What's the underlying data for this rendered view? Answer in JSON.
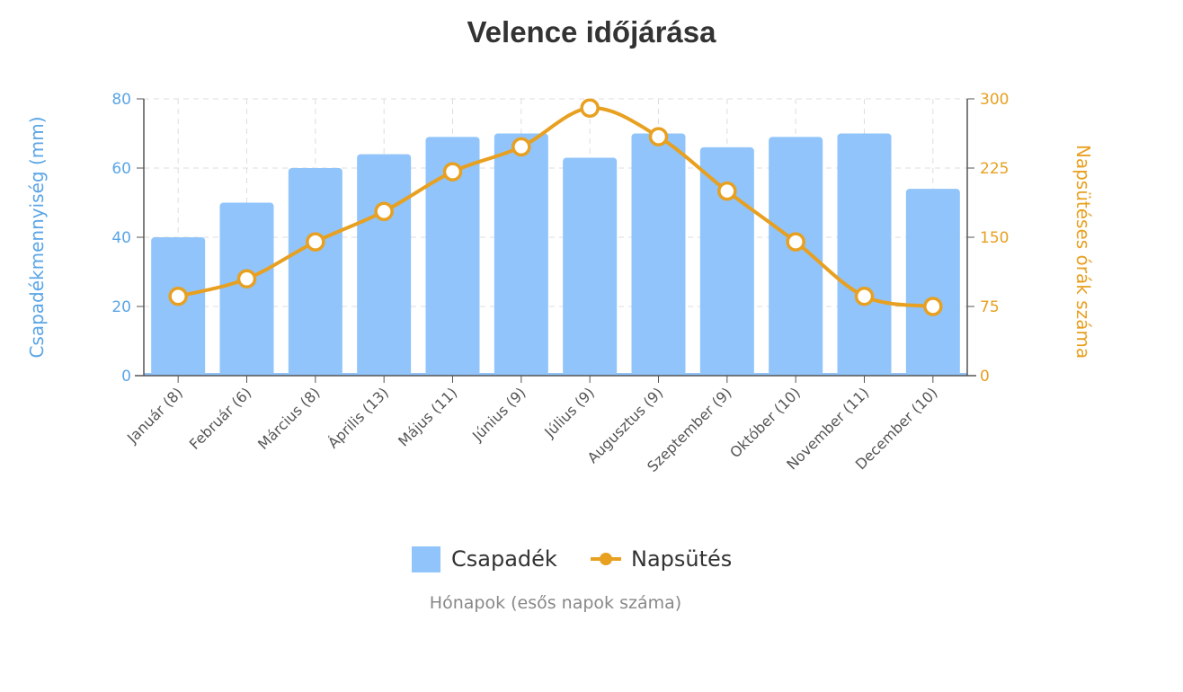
{
  "chart_data": {
    "type": "bar+line",
    "title": "Velence időjárása",
    "xlabel": "Hónapok (esős napok száma)",
    "ylabel_left": "Csapadékmennyiség (mm)",
    "ylabel_right": "Napsütéses órák száma",
    "categories": [
      "Január (8)",
      "Február (6)",
      "Március (8)",
      "Április (13)",
      "Május (11)",
      "Június (9)",
      "Július (9)",
      "Augusztus (9)",
      "Szeptember (9)",
      "Október (10)",
      "November (11)",
      "December (10)"
    ],
    "ylim_left": [
      0,
      80
    ],
    "yticks_left": [
      0,
      20,
      40,
      60,
      80
    ],
    "ylim_right": [
      0,
      300
    ],
    "yticks_right": [
      0,
      75,
      150,
      225,
      300
    ],
    "grid": true,
    "legend_placement": "bottom",
    "series": [
      {
        "name": "Csapadék",
        "type": "bar",
        "axis": "left",
        "color": "#90c4fa",
        "values": [
          40,
          50,
          60,
          64,
          69,
          70,
          63,
          70,
          66,
          69,
          70,
          54
        ]
      },
      {
        "name": "Napsütés",
        "type": "line",
        "axis": "right",
        "color": "#e8a020",
        "values": [
          86,
          105,
          145,
          178,
          221,
          248,
          290,
          259,
          200,
          145,
          86,
          75
        ]
      }
    ],
    "colors": {
      "left_axis": "#5aa5e6",
      "right_axis": "#e8a020"
    }
  }
}
